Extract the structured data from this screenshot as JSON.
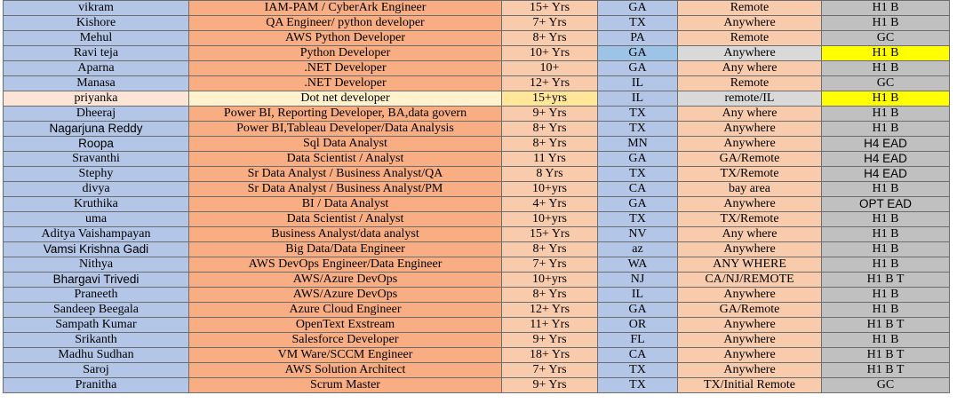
{
  "rows": [
    {
      "name": "vikram",
      "role": "IAM-PAM / CyberArk Engineer",
      "exp": "15+ Yrs",
      "state": "GA",
      "location": "Remote",
      "visa": "H1 B"
    },
    {
      "name": "Kishore",
      "role": "QA Engineer/ python developer",
      "exp": "7+ Yrs",
      "state": "TX",
      "location": "Anywhere",
      "visa": "H1 B"
    },
    {
      "name": "Mehul",
      "role": "AWS Python Developer",
      "exp": "8+ Yrs",
      "state": "PA",
      "location": "Remote",
      "visa": "GC"
    },
    {
      "name": "Ravi teja",
      "role": "Python Developer",
      "exp": "10+ Yrs",
      "state": "GA",
      "location": "Anywhere",
      "visa": "H1 B"
    },
    {
      "name": "Aparna",
      "role": ".NET Developer",
      "exp": "10+",
      "state": "GA",
      "location": "Any where",
      "visa": "H1 B"
    },
    {
      "name": "Manasa",
      "role": ".NET Developer",
      "exp": "12+ Yrs",
      "state": "IL",
      "location": "Remote",
      "visa": "GC"
    },
    {
      "name": "priyanka",
      "role": "Dot net developer",
      "exp": "15+yrs",
      "state": "IL",
      "location": "remote/IL",
      "visa": "H1 B"
    },
    {
      "name": "Dheeraj",
      "role": "Power BI, Reporting Developer, BA,data govern",
      "exp": "9+ Yrs",
      "state": "TX",
      "location": "Any where",
      "visa": "H1 B"
    },
    {
      "name": "Nagarjuna Reddy",
      "role": "Power BI,Tableau Developer/Data Analysis",
      "exp": "8+ Yrs",
      "state": "TX",
      "location": "Anywhere",
      "visa": "H1 B"
    },
    {
      "name": "Roopa",
      "role": "Sql Data Analyst",
      "exp": "8+ Yrs",
      "state": "MN",
      "location": "Anywhere",
      "visa": "H4 EAD"
    },
    {
      "name": "Sravanthi",
      "role": "Data Scientist / Analyst",
      "exp": "11 Yrs",
      "state": "GA",
      "location": "GA/Remote",
      "visa": "H4 EAD"
    },
    {
      "name": "Stephy",
      "role": "Sr Data Analyst / Business Analyst/QA",
      "exp": "8 Yrs",
      "state": "TX",
      "location": "TX/Remote",
      "visa": "H4 EAD"
    },
    {
      "name": "divya",
      "role": "Sr Data Analyst / Business Analyst/PM",
      "exp": "10+yrs",
      "state": "CA",
      "location": "bay area",
      "visa": "H1 B"
    },
    {
      "name": "Kruthika",
      "role": "BI / Data Analyst",
      "exp": "4+ Yrs",
      "state": "GA",
      "location": "Anywhere",
      "visa": "OPT EAD"
    },
    {
      "name": "uma",
      "role": "Data Scientist / Analyst",
      "exp": "10+yrs",
      "state": "TX",
      "location": "TX/Remote",
      "visa": "H1 B"
    },
    {
      "name": "Aditya Vaishampayan",
      "role": "Business Analyst/data analyst",
      "exp": "15+ Yrs",
      "state": "NV",
      "location": "Any where",
      "visa": "H1 B"
    },
    {
      "name": "Vamsi Krishna Gadi",
      "role": "Big Data/Data Engineer",
      "exp": "8+ Yrs",
      "state": "az",
      "location": "Anywhere",
      "visa": "H1 B"
    },
    {
      "name": "Nithya",
      "role": "AWS DevOps Engineer/Data Engineer",
      "exp": "7+ Yrs",
      "state": "WA",
      "location": "ANY WHERE",
      "visa": "H1 B"
    },
    {
      "name": "Bhargavi Trivedi",
      "role": "AWS/Azure DevOps",
      "exp": "10+yrs",
      "state": "NJ",
      "location": "CA/NJ/REMOTE",
      "visa": "H1 B T"
    },
    {
      "name": "Praneeth",
      "role": "AWS/Azure DevOps",
      "exp": "8+ Yrs",
      "state": "IL",
      "location": "Anywhere",
      "visa": "H1 B"
    },
    {
      "name": "Sandeep Beegala",
      "role": "Azure Cloud Engineer",
      "exp": "12+ Yrs",
      "state": "GA",
      "location": "GA/Remote",
      "visa": "H1 B"
    },
    {
      "name": "Sampath Kumar",
      "role": "OpenText Exstream",
      "exp": "11+ Yrs",
      "state": "OR",
      "location": "Anywhere",
      "visa": "H1 B T"
    },
    {
      "name": "Srikanth",
      "role": "Salesforce Developer",
      "exp": "9+ Yrs",
      "state": "FL",
      "location": "Anywhere",
      "visa": "H1 B"
    },
    {
      "name": "Madhu Sudhan",
      "role": "VM Ware/SCCM Engineer",
      "exp": "18+ Yrs",
      "state": "CA",
      "location": "Anywhere",
      "visa": "H1 B T"
    },
    {
      "name": "Saroj",
      "role": "AWS Solution Architect",
      "exp": "7+ Yrs",
      "state": "TX",
      "location": "Anywhere",
      "visa": "H1 B T"
    },
    {
      "name": "Pranitha",
      "role": "Scrum Master",
      "exp": "9+ Yrs",
      "state": "TX",
      "location": "TX/Initial Remote",
      "visa": "GC"
    }
  ],
  "colors": {
    "name_column": "#b4c6e7",
    "role_column": "#f8ad83",
    "exp_column": "#f8cbad",
    "state_column": "#b4c6e7",
    "location_column": "#f8cbad",
    "visa_column": "#c0c0c0",
    "highlight_yellow": "#ffff00"
  }
}
